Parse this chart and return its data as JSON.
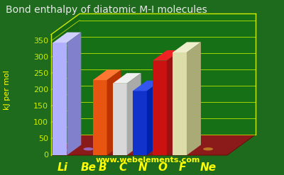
{
  "title": "Bond enthalpy of diatomic M-I molecules",
  "categories": [
    "Li",
    "Be",
    "B",
    "C",
    "N",
    "O",
    "F",
    "Ne"
  ],
  "values": [
    345,
    2,
    230,
    220,
    197,
    290,
    315,
    5
  ],
  "bar_colors_front": [
    "#b0b0ff",
    "#9966bb",
    "#e85510",
    "#d8d8d8",
    "#1133cc",
    "#cc1111",
    "#ddddaa",
    "#cc8833"
  ],
  "bar_colors_top": [
    "#d0d0ff",
    "#bb88dd",
    "#ff7733",
    "#f0f0f0",
    "#3355ee",
    "#ee2222",
    "#eeeecc",
    "#ddaa55"
  ],
  "bar_colors_side": [
    "#8080cc",
    "#774499",
    "#bb3300",
    "#aaaaaa",
    "#0022aa",
    "#991111",
    "#aaaa77",
    "#aa6611"
  ],
  "dot_colors": [
    "#8888cc",
    "#9966bb",
    "#bb3300",
    "#aaaaaa",
    "#0022aa",
    "#991111",
    "#aaaa77",
    "#bb7722"
  ],
  "background_color": "#1e6b1e",
  "floor_color": "#8b1a1a",
  "floor_edge": "#660000",
  "grid_color": "#ccee00",
  "title_color": "#e8e8e8",
  "label_color": "#ffff00",
  "tick_color": "#ccee00",
  "watermark": "www.webelements.com",
  "watermark_color": "#ffff00",
  "ylabel": "kJ per mol",
  "yticks": [
    0,
    50,
    100,
    150,
    200,
    250,
    300,
    350
  ],
  "ymax": 370,
  "title_fontsize": 10,
  "label_fontsize": 11,
  "tick_fontsize": 8
}
